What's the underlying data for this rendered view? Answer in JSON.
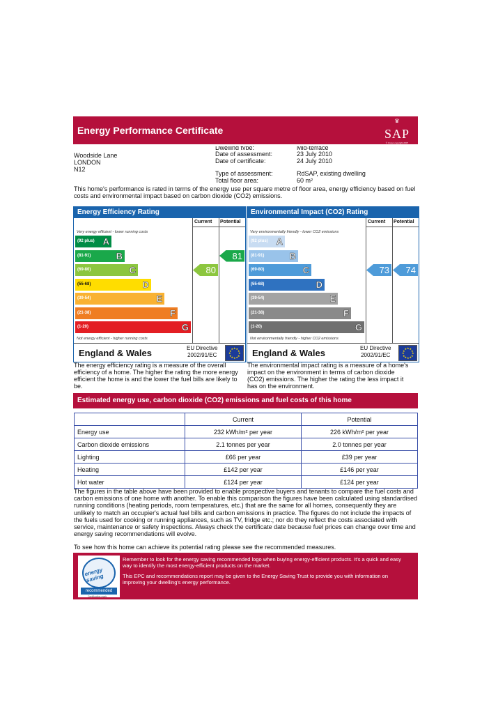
{
  "header": {
    "title": "Energy Performance Certificate",
    "logo_text": "SAP",
    "logo_copyright": "© Crown copyright 2007"
  },
  "address": {
    "line1": "Woodside Lane",
    "line2": "LONDON",
    "line3": "N12"
  },
  "meta": {
    "partial_label": "Dwelling type:",
    "partial_value": "Mid-terrace",
    "assessment_label": "Date of assessment:",
    "assessment_value": "23 July 2010",
    "certificate_label": "Date of certificate:",
    "certificate_value": "24 July 2010",
    "type_label": "Type of assessment:",
    "type_value": "RdSAP, existing dwelling",
    "floor_label": "Total floor area:",
    "floor_value": "60 m²"
  },
  "intro": "This home's performance is rated in terms of the energy use per square metre of floor area, energy efficiency based on fuel costs and environmental impact based on carbon dioxide (CO2) emissions.",
  "efficiency": {
    "title": "Energy Efficiency Rating",
    "current_label": "Current",
    "potential_label": "Potential",
    "top_note": "Very energy efficient - lower running costs",
    "bottom_note": "Not energy efficient - higher running costs",
    "bands": [
      {
        "range": "(92 plus)",
        "letter": "A",
        "color": "#008c45"
      },
      {
        "range": "(81-91)",
        "letter": "B",
        "color": "#1aa84a"
      },
      {
        "range": "(69-80)",
        "letter": "C",
        "color": "#8cc63f"
      },
      {
        "range": "(55-68)",
        "letter": "D",
        "color": "#ffdd00"
      },
      {
        "range": "(39-54)",
        "letter": "E",
        "color": "#f9b233"
      },
      {
        "range": "(21-38)",
        "letter": "F",
        "color": "#ef7d22"
      },
      {
        "range": "(1-20)",
        "letter": "G",
        "color": "#e31e24"
      }
    ],
    "current": 80,
    "current_color": "#8cc63f",
    "potential": 81,
    "potential_color": "#1aa84a",
    "region": "England & Wales",
    "directive": "EU Directive",
    "directive_code": "2002/91/EC"
  },
  "environment": {
    "title": "Environmental Impact (CO2) Rating",
    "current_label": "Current",
    "potential_label": "Potential",
    "top_note": "Very environmentally friendly - lower CO2 emissions",
    "bottom_note": "Not environmentally friendly - higher CO2 emissions",
    "bands": [
      {
        "range": "(92 plus)",
        "letter": "A",
        "color": "#c8dcf2"
      },
      {
        "range": "(81-91)",
        "letter": "B",
        "color": "#99c3ea"
      },
      {
        "range": "(69-80)",
        "letter": "C",
        "color": "#4e9bd9"
      },
      {
        "range": "(55-68)",
        "letter": "D",
        "color": "#2f72c0"
      },
      {
        "range": "(39-54)",
        "letter": "E",
        "color": "#a3a3a3"
      },
      {
        "range": "(21-38)",
        "letter": "F",
        "color": "#8a8a8a"
      },
      {
        "range": "(1-20)",
        "letter": "G",
        "color": "#707070"
      }
    ],
    "current": 73,
    "current_color": "#4e9bd9",
    "potential": 74,
    "potential_color": "#4e9bd9",
    "region": "England & Wales",
    "directive": "EU Directive",
    "directive_code": "2002/91/EC"
  },
  "desc_left": "The energy efficiency rating is a measure of the overall efficiency of a home. The higher the rating the more energy efficient the home is and the lower the fuel bills are likely to be.",
  "desc_right": "The environmental impact rating is a measure of a home's impact on the environment in terms of carbon dioxide (CO2) emissions. The higher the rating the less impact it has on the environment.",
  "estimate_title": "Estimated energy use, carbon dioxide (CO2) emissions and fuel costs of this home",
  "table": {
    "headers": [
      "",
      "Current",
      "Potential"
    ],
    "rows": [
      [
        "Energy use",
        "232 kWh/m² per year",
        "226 kWh/m² per year"
      ],
      [
        "Carbon dioxide emissions",
        "2.1 tonnes per year",
        "2.0 tonnes per year"
      ],
      [
        "Lighting",
        "£66 per year",
        "£39 per year"
      ],
      [
        "Heating",
        "£142 per year",
        "£146 per year"
      ],
      [
        "Hot water",
        "£124 per year",
        "£124 per year"
      ]
    ]
  },
  "paragraph": "The figures in the table above have been provided to enable prospective buyers and tenants to compare the fuel costs and carbon emissions of one home with another. To enable this comparison the figures have been calculated using standardised running conditions (heating periods, room temperatures, etc.) that are the same for all homes, consequently they are unlikely to match an occupier's actual fuel bills and carbon emissions in practice. The figures do not include the impacts of the fuels used for cooking or running appliances, such as TV, fridge etc.; nor do they reflect the costs associated with service, maintenance or safety inspections. Always check the certificate date because fuel prices can change over time and energy saving recommendations will evolve.",
  "paragraph2": "To see how this home can achieve its potential rating please see the recommended measures.",
  "footer": {
    "text1": "Remember to look for the energy saving recommended logo when buying energy-efficient products. It's a quick and easy way to identify the most energy-efficient products on the market.",
    "text2": "This EPC and recommendations report may be given to the Energy Saving Trust to provide you with information on improving your dwelling's energy performance.",
    "logo_top": "energy saving",
    "logo_bottom": "recommended",
    "logo_cert": "Certification mark"
  }
}
